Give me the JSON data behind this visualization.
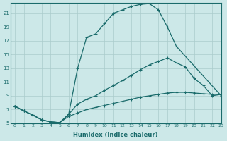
{
  "xlabel": "Humidex (Indice chaleur)",
  "xlim": [
    -0.5,
    23
  ],
  "ylim": [
    5,
    22.5
  ],
  "xticks": [
    0,
    1,
    2,
    3,
    4,
    5,
    6,
    7,
    8,
    9,
    10,
    11,
    12,
    13,
    14,
    15,
    16,
    17,
    18,
    19,
    20,
    21,
    22,
    23
  ],
  "yticks": [
    5,
    7,
    9,
    11,
    13,
    15,
    17,
    19,
    21
  ],
  "bg_color": "#cce8e8",
  "grid_color": "#aacccc",
  "line_color": "#1a6b6b",
  "curve1_x": [
    0,
    1,
    2,
    3,
    4,
    5,
    6,
    7,
    8,
    9,
    10,
    11,
    12,
    13,
    14,
    15,
    16,
    17,
    18,
    23
  ],
  "curve1_y": [
    7.5,
    6.8,
    6.2,
    5.5,
    5.2,
    5.1,
    6.3,
    13.0,
    17.5,
    18.0,
    19.5,
    21.0,
    21.5,
    22.0,
    22.3,
    22.4,
    21.5,
    19.0,
    16.2,
    9.0
  ],
  "curve2_x": [
    0,
    1,
    2,
    3,
    4,
    5,
    6,
    7,
    8,
    9,
    10,
    11,
    12,
    13,
    14,
    15,
    16,
    17,
    18,
    19,
    20,
    21,
    22,
    23
  ],
  "curve2_y": [
    7.5,
    6.8,
    6.2,
    5.5,
    5.2,
    5.1,
    6.3,
    7.8,
    8.5,
    9.0,
    9.8,
    10.5,
    11.2,
    12.0,
    12.8,
    13.5,
    14.0,
    14.5,
    13.8,
    13.2,
    11.5,
    10.5,
    9.0,
    9.2
  ],
  "curve3_x": [
    0,
    1,
    2,
    3,
    4,
    5,
    6,
    7,
    8,
    9,
    10,
    11,
    12,
    13,
    14,
    15,
    16,
    17,
    18,
    19,
    20,
    21,
    22,
    23
  ],
  "curve3_y": [
    7.5,
    6.8,
    6.2,
    5.5,
    5.2,
    5.1,
    6.0,
    6.5,
    7.0,
    7.3,
    7.6,
    7.9,
    8.2,
    8.5,
    8.8,
    9.0,
    9.2,
    9.4,
    9.5,
    9.5,
    9.4,
    9.3,
    9.2,
    9.2
  ]
}
